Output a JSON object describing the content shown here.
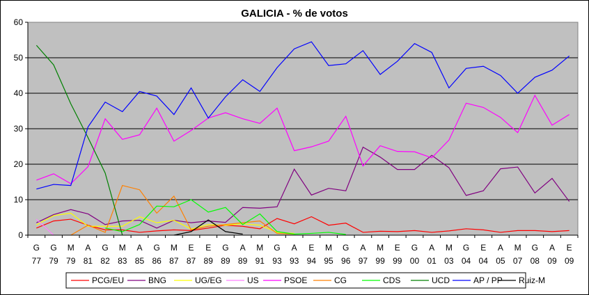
{
  "chart_data": {
    "type": "line",
    "title": "GALICIA - % de votos",
    "xlabel": "",
    "ylabel": "",
    "ylim": [
      0,
      60
    ],
    "yticks": [
      "0",
      "10",
      "20",
      "30",
      "40",
      "50",
      "60"
    ],
    "grid": true,
    "legend_position": "bottom",
    "plot_background": "#c0c0c0",
    "categories": [
      {
        "top": "G",
        "bottom": "77"
      },
      {
        "top": "G",
        "bottom": "79"
      },
      {
        "top": "M",
        "bottom": "79"
      },
      {
        "top": "A",
        "bottom": "81"
      },
      {
        "top": "G",
        "bottom": "82"
      },
      {
        "top": "M",
        "bottom": "83"
      },
      {
        "top": "A",
        "bottom": "85"
      },
      {
        "top": "G",
        "bottom": "86"
      },
      {
        "top": "M",
        "bottom": "87"
      },
      {
        "top": "E",
        "bottom": "87"
      },
      {
        "top": "E",
        "bottom": "89"
      },
      {
        "top": "G",
        "bottom": "89"
      },
      {
        "top": "A",
        "bottom": "89"
      },
      {
        "top": "M",
        "bottom": "91"
      },
      {
        "top": "G",
        "bottom": "93"
      },
      {
        "top": "A",
        "bottom": "93"
      },
      {
        "top": "E",
        "bottom": "94"
      },
      {
        "top": "M",
        "bottom": "95"
      },
      {
        "top": "G",
        "bottom": "96"
      },
      {
        "top": "A",
        "bottom": "97"
      },
      {
        "top": "M",
        "bottom": "99"
      },
      {
        "top": "E",
        "bottom": "99"
      },
      {
        "top": "G",
        "bottom": "00"
      },
      {
        "top": "A",
        "bottom": "01"
      },
      {
        "top": "M",
        "bottom": "03"
      },
      {
        "top": "G",
        "bottom": "04"
      },
      {
        "top": "E",
        "bottom": "04"
      },
      {
        "top": "A",
        "bottom": "05"
      },
      {
        "top": "M",
        "bottom": "07"
      },
      {
        "top": "G",
        "bottom": "08"
      },
      {
        "top": "A",
        "bottom": "09"
      },
      {
        "top": "E",
        "bottom": "09"
      }
    ],
    "series": [
      {
        "name": "PCG/EU",
        "color": "#ff0000",
        "values": [
          2.0,
          4.0,
          4.5,
          2.8,
          1.5,
          1.5,
          0.8,
          1.2,
          1.5,
          1.3,
          2.0,
          2.8,
          2.5,
          1.8,
          4.7,
          3.2,
          5.2,
          2.8,
          3.4,
          0.8,
          1.1,
          1.0,
          1.3,
          0.8,
          1.2,
          1.8,
          1.5,
          0.8,
          1.3,
          1.3,
          1.0,
          1.3
        ]
      },
      {
        "name": "BNG",
        "color": "#800080",
        "values": [
          3.5,
          5.8,
          7.2,
          6.0,
          3.0,
          4.0,
          4.2,
          2.0,
          4.2,
          3.5,
          4.0,
          3.6,
          7.8,
          7.6,
          8.0,
          18.6,
          11.3,
          13.2,
          12.5,
          24.8,
          22.0,
          18.5,
          18.5,
          22.5,
          19.0,
          11.2,
          12.5,
          18.7,
          19.2,
          11.9,
          16.0,
          9.5
        ]
      },
      {
        "name": "UG/EG",
        "color": "#ffff00",
        "values": [
          2.9,
          5.5,
          6.2,
          2.5,
          2.5,
          2.5,
          5.2,
          3.5,
          4.2,
          1.7,
          3.0,
          2.8,
          3.2,
          2.8,
          0.8,
          0.5,
          null,
          null,
          null,
          null,
          null,
          null,
          null,
          null,
          null,
          null,
          null,
          null,
          null,
          null,
          null,
          null
        ]
      },
      {
        "name": "US",
        "color": "#ff80ff",
        "values": [
          4.5,
          0.0,
          null,
          null,
          null,
          null,
          null,
          null,
          null,
          null,
          null,
          null,
          null,
          null,
          null,
          null,
          null,
          null,
          null,
          null,
          null,
          null,
          null,
          null,
          null,
          null,
          null,
          null,
          null,
          null,
          null,
          null
        ]
      },
      {
        "name": "PSOE",
        "color": "#ff00ff",
        "values": [
          15.5,
          17.3,
          14.5,
          19.3,
          32.8,
          27.0,
          28.3,
          35.8,
          26.5,
          29.5,
          33.0,
          34.5,
          32.8,
          31.5,
          35.8,
          23.8,
          24.9,
          26.5,
          33.5,
          19.5,
          25.2,
          23.6,
          23.5,
          21.8,
          26.8,
          37.2,
          36.0,
          33.2,
          28.9,
          39.4,
          31.0,
          34.0
        ]
      },
      {
        "name": "CG",
        "color": "#ff8000",
        "values": [
          null,
          null,
          0.0,
          2.8,
          0.8,
          14.0,
          12.8,
          6.2,
          11.0,
          1.5,
          2.5,
          3.0,
          3.5,
          4.0,
          0.5,
          0.3,
          null,
          null,
          null,
          null,
          null,
          null,
          null,
          null,
          null,
          null,
          null,
          null,
          null,
          null,
          null,
          null
        ]
      },
      {
        "name": "CDS",
        "color": "#00ff00",
        "values": [
          null,
          null,
          null,
          null,
          2.0,
          1.0,
          3.0,
          8.2,
          8.0,
          10.0,
          6.5,
          7.8,
          3.0,
          6.0,
          1.0,
          0.3,
          0.5,
          0.8,
          0.2,
          null,
          null,
          null,
          null,
          null,
          null,
          null,
          null,
          null,
          null,
          null,
          null,
          null
        ]
      },
      {
        "name": "UCD",
        "color": "#008000",
        "values": [
          53.5,
          48.0,
          37.0,
          27.5,
          17.5,
          0.0,
          null,
          null,
          null,
          null,
          null,
          null,
          null,
          null,
          null,
          null,
          null,
          null,
          null,
          null,
          null,
          null,
          null,
          null,
          null,
          null,
          null,
          null,
          null,
          null,
          null,
          null
        ]
      },
      {
        "name": "AP / PP",
        "color": "#0000ff",
        "values": [
          13.0,
          14.3,
          14.0,
          30.5,
          37.5,
          34.8,
          40.5,
          39.2,
          34.0,
          41.5,
          33.0,
          39.0,
          43.8,
          40.5,
          47.2,
          52.5,
          54.5,
          47.8,
          48.3,
          52.0,
          45.3,
          49.0,
          54.0,
          51.5,
          41.5,
          47.0,
          47.6,
          45.0,
          40.0,
          44.5,
          46.5,
          50.5
        ]
      },
      {
        "name": "Ruiz-M",
        "color": "#000000",
        "values": [
          null,
          null,
          null,
          null,
          null,
          null,
          null,
          null,
          0.0,
          1.0,
          4.3,
          1.0,
          0.3,
          null,
          null,
          null,
          null,
          null,
          null,
          null,
          null,
          null,
          null,
          null,
          null,
          null,
          null,
          null,
          null,
          null,
          null,
          null
        ]
      }
    ]
  }
}
